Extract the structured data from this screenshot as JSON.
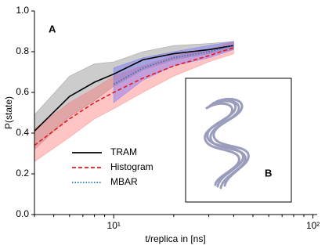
{
  "chart_data": {
    "type": "line",
    "x_label": "t/replica in [ns]",
    "y_label": "P(state)",
    "annotations": [
      "A",
      "B"
    ],
    "x": [
      4,
      6,
      8,
      10,
      14,
      20,
      30,
      40
    ],
    "series": [
      {
        "name": "TRAM",
        "color": "#000000",
        "dash": "solid",
        "band_color": "#808080",
        "values": [
          0.41,
          0.58,
          0.65,
          0.69,
          0.76,
          0.79,
          0.81,
          0.83
        ],
        "band_lower": [
          0.32,
          0.48,
          0.56,
          0.63,
          0.71,
          0.76,
          0.79,
          0.81
        ],
        "band_upper": [
          0.49,
          0.68,
          0.74,
          0.75,
          0.8,
          0.83,
          0.84,
          0.85
        ]
      },
      {
        "name": "Histogram",
        "color": "#e41a1c",
        "dash": "dashed",
        "band_color": "#ff6f6f",
        "values": [
          0.34,
          0.47,
          0.55,
          0.6,
          0.67,
          0.73,
          0.78,
          0.82
        ],
        "band_lower": [
          0.26,
          0.38,
          0.47,
          0.52,
          0.6,
          0.68,
          0.75,
          0.79
        ],
        "band_upper": [
          0.42,
          0.55,
          0.62,
          0.68,
          0.73,
          0.78,
          0.81,
          0.85
        ]
      },
      {
        "name": "MBAR",
        "color": "#1f77b4",
        "dash": "dotted",
        "band_color": "#6a6aff",
        "values": [
          null,
          null,
          null,
          0.64,
          0.72,
          0.77,
          0.8,
          0.83
        ],
        "band_lower": [
          null,
          null,
          null,
          0.55,
          0.66,
          0.73,
          0.77,
          0.81
        ],
        "band_upper": [
          null,
          null,
          null,
          0.72,
          0.77,
          0.8,
          0.83,
          0.85
        ]
      }
    ],
    "xscale": "log",
    "xlim": [
      4,
      105
    ],
    "xticks": [
      {
        "value": 10,
        "label": "10¹"
      },
      {
        "value": 100,
        "label": "10²"
      }
    ],
    "xminor_ticks": [
      4,
      5,
      6,
      7,
      8,
      9,
      20,
      30,
      40,
      50,
      60,
      70,
      80,
      90
    ],
    "ylim": [
      0,
      1
    ],
    "yticks": [
      {
        "value": 0,
        "label": "0.0"
      },
      {
        "value": 0.2,
        "label": "0.2"
      },
      {
        "value": 0.4,
        "label": "0.4"
      },
      {
        "value": 0.6,
        "label": "0.6"
      },
      {
        "value": 0.8,
        "label": "0.8"
      },
      {
        "value": 1,
        "label": "1.0"
      }
    ],
    "legend": "lower left",
    "grid": false
  }
}
